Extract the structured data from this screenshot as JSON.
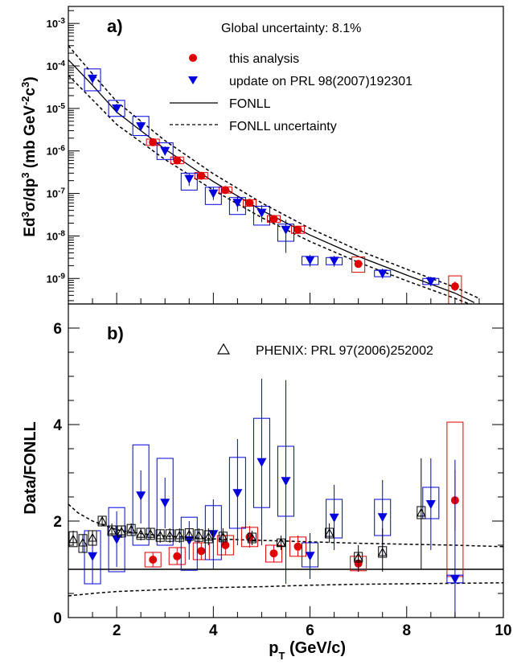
{
  "colors": {
    "red": "#e00000",
    "blue": "#0000e0",
    "black": "#000000"
  },
  "chart_data": [
    {
      "type": "scatter",
      "panel_label": "a)",
      "annotation": "Global uncertainty: 8.1%",
      "ylabel_parts": [
        "Ed",
        "3",
        "σ/dp",
        "3",
        " (mb GeV",
        "-2",
        "c",
        "3",
        ")"
      ],
      "xlim": [
        1,
        10
      ],
      "ylim_log10": [
        -9.6,
        -2.6
      ],
      "y_log": true,
      "legend": [
        "this analysis",
        "update on PRL 98(2007)192301",
        "FONLL",
        "FONLL uncertainty"
      ],
      "y_ticks": [
        {
          "exp": -9,
          "base": "10",
          "sup": "-9"
        },
        {
          "exp": -8,
          "base": "10",
          "sup": "-8"
        },
        {
          "exp": -7,
          "base": "10",
          "sup": "-7"
        },
        {
          "exp": -6,
          "base": "10",
          "sup": "-6"
        },
        {
          "exp": -5,
          "base": "10",
          "sup": "-5"
        },
        {
          "exp": -4,
          "base": "10",
          "sup": "-4"
        },
        {
          "exp": -3,
          "base": "10",
          "sup": "-3"
        }
      ],
      "series": [
        {
          "name": "this analysis",
          "marker": "circle",
          "color": "red",
          "points": [
            {
              "x": 2.75,
              "y": 1.6e-06,
              "ylo": 1.4e-06,
              "yhi": 1.8e-06,
              "syslo": 1.35e-06,
              "syshi": 1.9e-06
            },
            {
              "x": 3.25,
              "y": 6e-07,
              "ylo": 5.3e-07,
              "yhi": 6.8e-07,
              "syslo": 5e-07,
              "syshi": 7.2e-07
            },
            {
              "x": 3.75,
              "y": 2.6e-07,
              "ylo": 2.3e-07,
              "yhi": 2.9e-07,
              "syslo": 2.2e-07,
              "syshi": 3.1e-07
            },
            {
              "x": 4.25,
              "y": 1.2e-07,
              "ylo": 1.08e-07,
              "yhi": 1.35e-07,
              "syslo": 1.02e-07,
              "syshi": 1.42e-07
            },
            {
              "x": 4.75,
              "y": 6e-08,
              "ylo": 5.3e-08,
              "yhi": 6.8e-08,
              "syslo": 5e-08,
              "syshi": 7.1e-08
            },
            {
              "x": 5.25,
              "y": 2.5e-08,
              "ylo": 2.2e-08,
              "yhi": 2.8e-08,
              "syslo": 2.1e-08,
              "syshi": 3e-08
            },
            {
              "x": 5.75,
              "y": 1.4e-08,
              "ylo": 1.2e-08,
              "yhi": 1.6e-08,
              "syslo": 1.15e-08,
              "syshi": 1.7e-08
            },
            {
              "x": 7.0,
              "y": 2.2e-09,
              "ylo": 1.8e-09,
              "yhi": 2.7e-09,
              "syslo": 1.4e-09,
              "syshi": 3.2e-09
            },
            {
              "x": 9.0,
              "y": 6.5e-10,
              "ylo": 5e-10,
              "yhi": 8.5e-10,
              "syslo": 2.4e-10,
              "syshi": 1.15e-09
            }
          ]
        },
        {
          "name": "update on PRL 98(2007)192301",
          "marker": "triangle-down",
          "color": "blue",
          "points": [
            {
              "x": 1.5,
              "y": 5e-05,
              "ylo": 3.6e-05,
              "yhi": 6.8e-05,
              "syslo": 2.6e-05,
              "syshi": 8.5e-05
            },
            {
              "x": 2.0,
              "y": 1e-05,
              "ylo": 7.8e-06,
              "yhi": 1.28e-05,
              "syslo": 6.5e-06,
              "syshi": 1.55e-05
            },
            {
              "x": 2.5,
              "y": 3.8e-06,
              "ylo": 2.9e-06,
              "yhi": 5e-06,
              "syslo": 2.3e-06,
              "syshi": 6.5e-06
            },
            {
              "x": 3.0,
              "y": 1e-06,
              "ylo": 7.8e-07,
              "yhi": 1.28e-06,
              "syslo": 6.3e-07,
              "syshi": 1.55e-06
            },
            {
              "x": 3.5,
              "y": 2.2e-07,
              "ylo": 1.5e-07,
              "yhi": 3e-07,
              "syslo": 1.2e-07,
              "syshi": 3e-07
            },
            {
              "x": 4.0,
              "y": 1e-07,
              "ylo": 7e-08,
              "yhi": 1.4e-07,
              "syslo": 5.5e-08,
              "syshi": 1.4e-07
            },
            {
              "x": 4.5,
              "y": 6e-08,
              "ylo": 3.8e-08,
              "yhi": 8.5e-08,
              "syslo": 3.2e-08,
              "syshi": 8e-08
            },
            {
              "x": 5.0,
              "y": 3.5e-08,
              "ylo": 2.1e-08,
              "yhi": 5.3e-08,
              "syslo": 1.8e-08,
              "syshi": 5e-08
            },
            {
              "x": 5.5,
              "y": 1.4e-08,
              "ylo": 4e-09,
              "yhi": 2.4e-08,
              "syslo": 7.5e-09,
              "syshi": 1.9e-08
            },
            {
              "x": 6.0,
              "y": 2.7e-09,
              "ylo": 1.9e-09,
              "yhi": 3.6e-09,
              "syslo": 2.1e-09,
              "syshi": 3.3e-09
            },
            {
              "x": 6.5,
              "y": 2.6e-09,
              "ylo": 1.9e-09,
              "yhi": 3.4e-09,
              "syslo": 2.1e-09,
              "syshi": 3.1e-09
            },
            {
              "x": 7.5,
              "y": 1.3e-09,
              "ylo": 1e-09,
              "yhi": 1.7e-09,
              "syslo": 1.1e-09,
              "syshi": 1.55e-09
            },
            {
              "x": 8.5,
              "y": 8.5e-10,
              "ylo": 6.5e-10,
              "yhi": 1.1e-09,
              "syslo": 7.2e-10,
              "syshi": 1e-09
            }
          ]
        }
      ],
      "curves": {
        "fonll_central": {
          "x": [
            1.0,
            1.5,
            2.0,
            3.0,
            4.0,
            5.0,
            6.0,
            7.0,
            8.0,
            9.0,
            9.4
          ],
          "y": [
            0.00014,
            3.5e-05,
            8.2e-06,
            1.1e-06,
            1.9e-07,
            4e-08,
            1.05e-08,
            3.3e-09,
            1.2e-09,
            4.5e-10,
            2.7e-10
          ]
        },
        "fonll_upper": {
          "x": [
            1.0,
            1.5,
            2.0,
            3.0,
            4.0,
            5.0,
            6.0,
            7.0,
            8.0,
            9.0,
            9.5
          ],
          "y": [
            0.0003,
            6.5e-05,
            1.45e-05,
            1.75e-06,
            2.9e-07,
            6e-08,
            1.5e-08,
            4.6e-09,
            1.65e-09,
            6.2e-10,
            3.4e-10
          ]
        },
        "fonll_lower": {
          "x": [
            1.0,
            1.5,
            2.0,
            3.0,
            4.0,
            5.0,
            6.0,
            7.0,
            8.0,
            9.0,
            9.3
          ],
          "y": [
            6e-05,
            1.6e-05,
            4.2e-06,
            6.3e-07,
            1.2e-07,
            2.7e-08,
            7.4e-09,
            2.4e-09,
            8.8e-10,
            3.4e-10,
            2.5e-10
          ]
        }
      }
    },
    {
      "type": "scatter",
      "panel_label": "b)",
      "annotation": "PHENIX: PRL 97(2006)252002",
      "ylabel": "Data/FONLL",
      "xlabel_parts": [
        "p",
        "T",
        " (GeV/c)"
      ],
      "xlim": [
        1,
        10
      ],
      "ylim": [
        0,
        6.5
      ],
      "x_ticks": [
        2,
        4,
        6,
        8,
        10
      ],
      "y_ticks": [
        0,
        2,
        4,
        6
      ],
      "reference_line": 1.0,
      "series": [
        {
          "name": "this analysis",
          "marker": "circle",
          "color": "red",
          "points": [
            {
              "x": 2.75,
              "y": 1.2,
              "ylo": 1.05,
              "yhi": 1.35,
              "syslo": 1.05,
              "syshi": 1.35
            },
            {
              "x": 3.25,
              "y": 1.27,
              "ylo": 1.1,
              "yhi": 1.45,
              "syslo": 1.1,
              "syshi": 1.45
            },
            {
              "x": 3.75,
              "y": 1.38,
              "ylo": 1.2,
              "yhi": 1.55,
              "syslo": 1.2,
              "syshi": 1.55
            },
            {
              "x": 4.25,
              "y": 1.5,
              "ylo": 1.3,
              "yhi": 1.7,
              "syslo": 1.3,
              "syshi": 1.7
            },
            {
              "x": 4.75,
              "y": 1.67,
              "ylo": 1.45,
              "yhi": 1.9,
              "syslo": 1.47,
              "syshi": 1.87
            },
            {
              "x": 5.25,
              "y": 1.33,
              "ylo": 1.15,
              "yhi": 1.5,
              "syslo": 1.15,
              "syshi": 1.5
            },
            {
              "x": 5.75,
              "y": 1.47,
              "ylo": 1.27,
              "yhi": 1.7,
              "syslo": 1.27,
              "syshi": 1.67
            },
            {
              "x": 7.0,
              "y": 1.12,
              "ylo": 0.95,
              "yhi": 1.3,
              "syslo": 0.97,
              "syshi": 1.27
            },
            {
              "x": 9.0,
              "y": 2.43,
              "ylo": 1.8,
              "yhi": 3.05,
              "syslo": 0.85,
              "syshi": 4.05
            }
          ]
        },
        {
          "name": "update on PRL 98(2007)192301",
          "marker": "triangle-down",
          "color": "blue",
          "points": [
            {
              "x": 1.5,
              "y": 1.27,
              "ylo": 0.7,
              "yhi": 1.8,
              "syslo": 0.7,
              "syshi": 1.8
            },
            {
              "x": 2.0,
              "y": 1.62,
              "ylo": 1.05,
              "yhi": 2.2,
              "syslo": 0.95,
              "syshi": 2.28
            },
            {
              "x": 2.5,
              "y": 2.53,
              "ylo": 1.95,
              "yhi": 3.05,
              "syslo": 1.5,
              "syshi": 3.58
            },
            {
              "x": 3.0,
              "y": 2.38,
              "ylo": 1.85,
              "yhi": 2.9,
              "syslo": 1.5,
              "syshi": 3.3
            },
            {
              "x": 3.5,
              "y": 1.6,
              "ylo": 1.2,
              "yhi": 2.0,
              "syslo": 0.98,
              "syshi": 2.08
            },
            {
              "x": 4.0,
              "y": 1.73,
              "ylo": 1.0,
              "yhi": 2.45,
              "syslo": 1.2,
              "syshi": 2.32
            },
            {
              "x": 4.5,
              "y": 2.58,
              "ylo": 1.5,
              "yhi": 3.7,
              "syslo": 1.85,
              "syshi": 3.32
            },
            {
              "x": 5.0,
              "y": 3.22,
              "ylo": 1.5,
              "yhi": 4.95,
              "syslo": 2.28,
              "syshi": 4.13
            },
            {
              "x": 5.5,
              "y": 2.83,
              "ylo": 0.7,
              "yhi": 4.92,
              "syslo": 2.1,
              "syshi": 3.55
            },
            {
              "x": 6.0,
              "y": 1.28,
              "ylo": 0.8,
              "yhi": 1.75,
              "syslo": 1.05,
              "syshi": 1.55
            },
            {
              "x": 6.5,
              "y": 2.07,
              "ylo": 1.4,
              "yhi": 2.75,
              "syslo": 1.65,
              "syshi": 2.45
            },
            {
              "x": 7.5,
              "y": 2.08,
              "ylo": 1.3,
              "yhi": 2.85,
              "syslo": 1.7,
              "syshi": 2.45
            },
            {
              "x": 8.5,
              "y": 2.35,
              "ylo": 1.4,
              "yhi": 3.3,
              "syslo": 2.05,
              "syshi": 2.7
            },
            {
              "x": 9.0,
              "y": 0.8,
              "ylo": 0.0,
              "yhi": 3.27,
              "syslo": 0.72,
              "syshi": 0.88
            }
          ]
        },
        {
          "name": "PHENIX: PRL 97(2006)252002",
          "marker": "triangle-up-open",
          "color": "black",
          "points": [
            {
              "x": 1.1,
              "y": 1.62,
              "ylo": 1.5,
              "yhi": 1.8,
              "syslo": 1.47,
              "syshi": 1.78
            },
            {
              "x": 1.3,
              "y": 1.55,
              "ylo": 1.35,
              "yhi": 1.72,
              "syslo": 1.35,
              "syshi": 1.72
            },
            {
              "x": 1.5,
              "y": 1.65,
              "ylo": 1.5,
              "yhi": 1.8,
              "syslo": 1.5,
              "syshi": 1.8
            },
            {
              "x": 1.7,
              "y": 2.0,
              "ylo": 1.9,
              "yhi": 2.1,
              "syslo": 1.9,
              "syshi": 2.1
            },
            {
              "x": 1.9,
              "y": 1.8,
              "ylo": 1.7,
              "yhi": 1.95,
              "syslo": 1.7,
              "syshi": 1.9
            },
            {
              "x": 2.1,
              "y": 1.78,
              "ylo": 1.65,
              "yhi": 1.9,
              "syslo": 1.67,
              "syshi": 1.9
            },
            {
              "x": 2.3,
              "y": 1.82,
              "ylo": 1.7,
              "yhi": 1.95,
              "syslo": 1.7,
              "syshi": 1.93
            },
            {
              "x": 2.5,
              "y": 1.73,
              "ylo": 1.6,
              "yhi": 1.85,
              "syslo": 1.62,
              "syshi": 1.85
            },
            {
              "x": 2.7,
              "y": 1.73,
              "ylo": 1.62,
              "yhi": 1.85,
              "syslo": 1.62,
              "syshi": 1.85
            },
            {
              "x": 2.9,
              "y": 1.7,
              "ylo": 1.55,
              "yhi": 1.82,
              "syslo": 1.58,
              "syshi": 1.82
            },
            {
              "x": 3.1,
              "y": 1.7,
              "ylo": 1.55,
              "yhi": 1.85,
              "syslo": 1.58,
              "syshi": 1.82
            },
            {
              "x": 3.3,
              "y": 1.7,
              "ylo": 1.55,
              "yhi": 1.85,
              "syslo": 1.58,
              "syshi": 1.82
            },
            {
              "x": 3.5,
              "y": 1.72,
              "ylo": 1.58,
              "yhi": 1.85,
              "syslo": 1.6,
              "syshi": 1.84
            },
            {
              "x": 3.7,
              "y": 1.7,
              "ylo": 1.55,
              "yhi": 1.85,
              "syslo": 1.58,
              "syshi": 1.82
            },
            {
              "x": 3.9,
              "y": 1.67,
              "ylo": 1.5,
              "yhi": 1.85,
              "syslo": 1.55,
              "syshi": 1.8
            },
            {
              "x": 4.2,
              "y": 1.67,
              "ylo": 1.5,
              "yhi": 1.85,
              "syslo": 1.57,
              "syshi": 1.77
            },
            {
              "x": 4.8,
              "y": 1.65,
              "ylo": 1.5,
              "yhi": 1.8,
              "syslo": 1.55,
              "syshi": 1.75
            },
            {
              "x": 5.4,
              "y": 1.55,
              "ylo": 1.4,
              "yhi": 1.7,
              "syslo": 1.47,
              "syshi": 1.63
            },
            {
              "x": 6.4,
              "y": 1.75,
              "ylo": 1.55,
              "yhi": 1.95,
              "syslo": 1.65,
              "syshi": 1.85
            },
            {
              "x": 7.0,
              "y": 1.25,
              "ylo": 0.95,
              "yhi": 1.5,
              "syslo": 1.15,
              "syshi": 1.35
            },
            {
              "x": 7.5,
              "y": 1.35,
              "ylo": 0.95,
              "yhi": 1.85,
              "syslo": 1.25,
              "syshi": 1.47
            },
            {
              "x": 8.3,
              "y": 2.17,
              "ylo": 1.0,
              "yhi": 3.3,
              "syslo": 2.05,
              "syshi": 2.3
            }
          ]
        }
      ],
      "curves": {
        "fonll_upper": {
          "x": [
            1.0,
            1.2,
            1.5,
            2.0,
            2.5,
            3.0,
            4.0,
            5.0,
            6.0,
            7.0,
            8.0,
            9.0,
            10.0
          ],
          "y": [
            2.35,
            2.17,
            2.0,
            1.82,
            1.74,
            1.69,
            1.63,
            1.6,
            1.57,
            1.54,
            1.52,
            1.5,
            1.47
          ]
        },
        "fonll_lower": {
          "x": [
            1.0,
            1.5,
            2.0,
            3.0,
            4.0,
            5.0,
            6.0,
            7.0,
            8.0,
            9.0,
            10.0
          ],
          "y": [
            0.45,
            0.5,
            0.54,
            0.58,
            0.62,
            0.64,
            0.67,
            0.69,
            0.7,
            0.71,
            0.72
          ]
        }
      }
    }
  ]
}
